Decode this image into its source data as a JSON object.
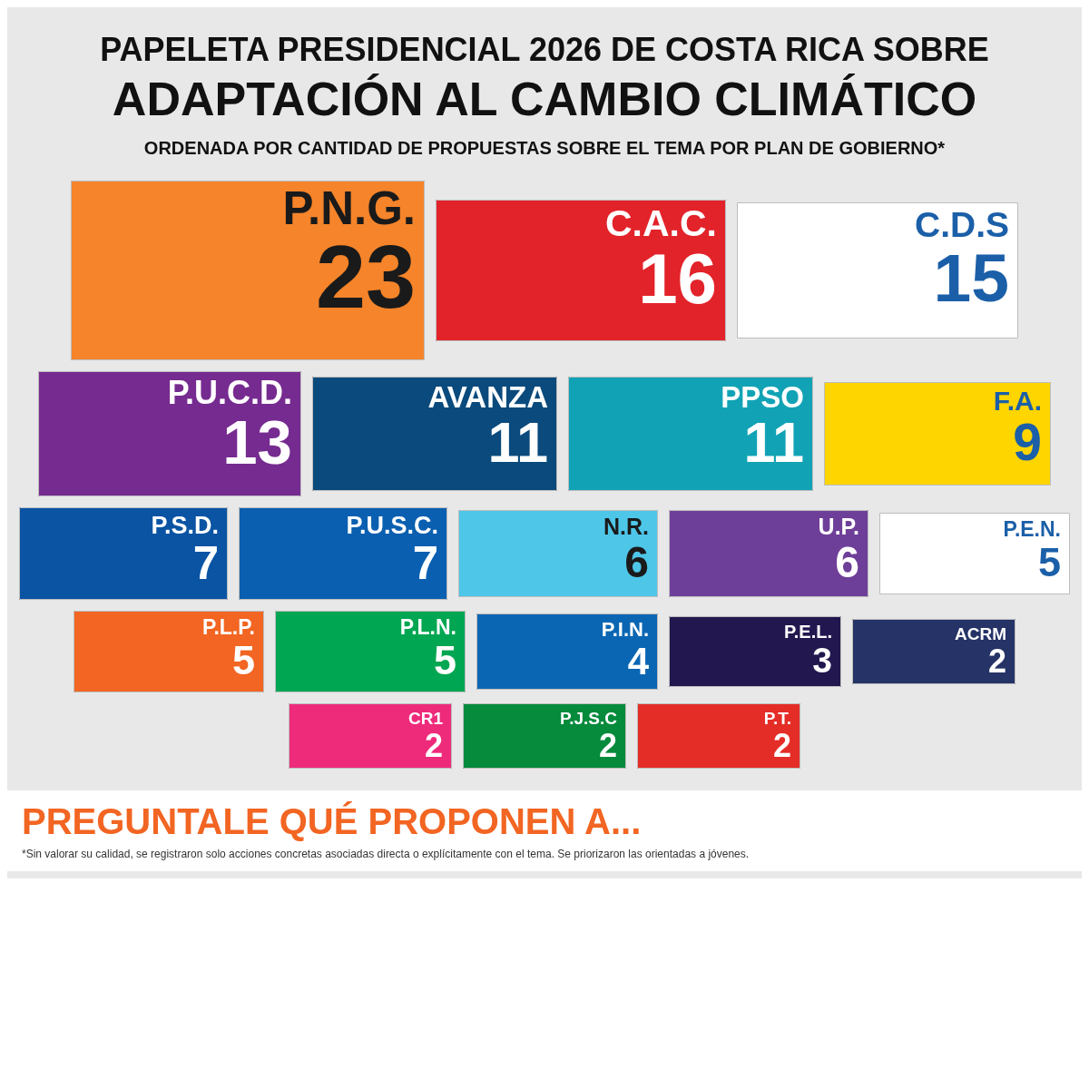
{
  "chart_data": {
    "type": "other",
    "title": "PAPELETA PRESIDENCIAL 2026 DE COSTA RICA SOBRE\nADAPTACIÓN AL CAMBIO CLIMÁTICO",
    "subtitle": "ORDENADA POR CANTIDAD DE PROPUESTAS SOBRE EL TEMA POR PLAN DE GOBIERNO*",
    "categories": [
      "P.N.G.",
      "C.A.C.",
      "C.D.S",
      "P.U.C.D.",
      "AVANZA",
      "PPSO",
      "F.A.",
      "P.S.D.",
      "P.U.S.C.",
      "N.R.",
      "U.P.",
      "P.E.N.",
      "P.L.P.",
      "P.L.N.",
      "P.I.N.",
      "P.E.L.",
      "ACRM",
      "CR1",
      "P.J.S.C",
      "P.T."
    ],
    "values": [
      23,
      16,
      15,
      13,
      11,
      11,
      9,
      7,
      7,
      6,
      6,
      5,
      5,
      5,
      4,
      3,
      2,
      2,
      2,
      2
    ],
    "colors": [
      "#f5842a",
      "#e2232a",
      "#ffffff",
      "#762b90",
      "#0a4a7c",
      "#11a3b5",
      "#ffd500",
      "#0b54a4",
      "#0a5fb0",
      "#4ec6e8",
      "#6e3f98",
      "#ffffff",
      "#f26522",
      "#00a651",
      "#0a66b3",
      "#22174f",
      "#253366",
      "#ee2a7b",
      "#068a3c",
      "#e52d27"
    ],
    "data_labels": true,
    "annotations": [
      "PREGUNTALE QUÉ PROPONEN A...",
      "*Sin valorar su calidad, se registraron solo acciones concretas asociadas directa o explícitamente con el tema. Se priorizaron las orientadas a jóvenes."
    ]
  }
}
